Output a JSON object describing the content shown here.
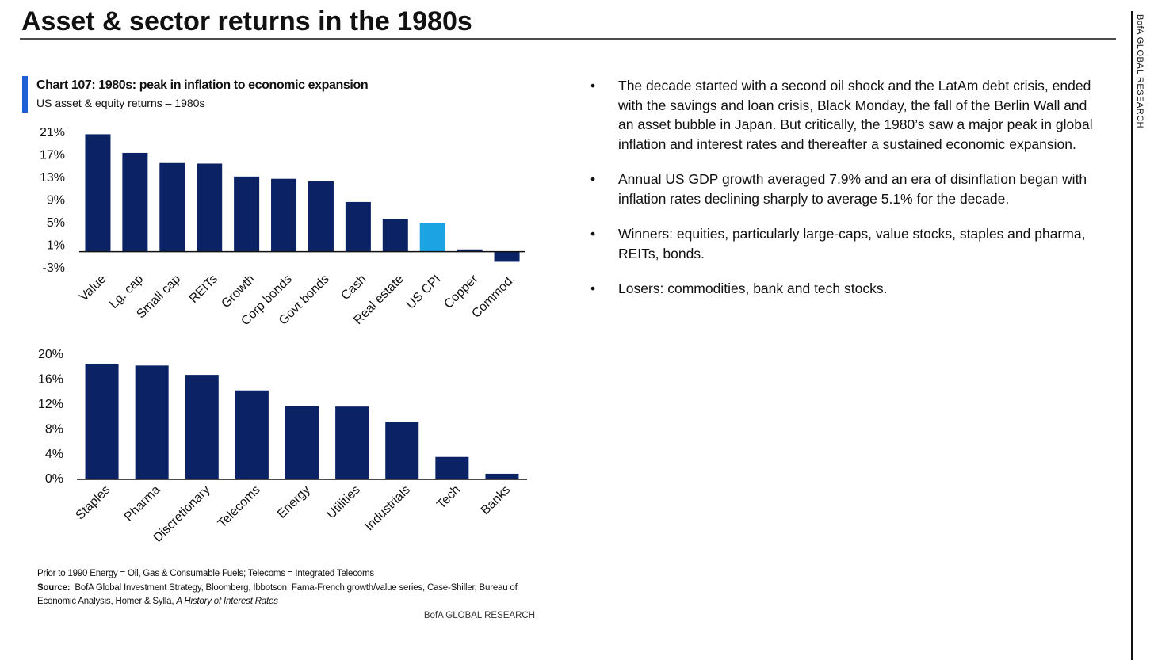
{
  "header": {
    "title": "Asset & sector returns in the 1980s",
    "side_label": "BofA GLOBAL RESEARCH"
  },
  "chart_data": [
    {
      "type": "bar",
      "title": "Chart 107: 1980s: peak in inflation to economic expansion",
      "subtitle": "US asset & equity returns – 1980s",
      "categories": [
        "Value",
        "Lg. cap",
        "Small cap",
        "REITs",
        "Growth",
        "Corp bonds",
        "Govt bonds",
        "Cash",
        "Real estate",
        "US CPI",
        "Copper",
        "Commod."
      ],
      "values": [
        20.8,
        17.5,
        15.7,
        15.6,
        13.3,
        12.9,
        12.5,
        8.8,
        5.8,
        5.1,
        0.4,
        -1.8
      ],
      "colors": [
        "#0b2265",
        "#0b2265",
        "#0b2265",
        "#0b2265",
        "#0b2265",
        "#0b2265",
        "#0b2265",
        "#0b2265",
        "#0b2265",
        "#1ca3e3",
        "#0b2265",
        "#0b2265"
      ],
      "ylim": [
        -3,
        21
      ],
      "yticks": [
        {
          "value": 21,
          "label": "21%"
        },
        {
          "value": 17,
          "label": "17%"
        },
        {
          "value": 13,
          "label": "13%"
        },
        {
          "value": 9,
          "label": "9%"
        },
        {
          "value": 5,
          "label": "5%"
        },
        {
          "value": 1,
          "label": "1%"
        },
        {
          "value": -3,
          "label": "-3%"
        }
      ],
      "grid": false
    },
    {
      "type": "bar",
      "categories": [
        "Staples",
        "Pharma",
        "Discretionary",
        "Telecoms",
        "Energy",
        "Utilities",
        "Industrials",
        "Tech",
        "Banks"
      ],
      "values": [
        18.6,
        18.3,
        16.8,
        14.3,
        11.8,
        11.7,
        9.3,
        3.6,
        0.9
      ],
      "color": "#0b2265",
      "ylim": [
        0,
        20
      ],
      "yticks": [
        {
          "value": 20,
          "label": "20%"
        },
        {
          "value": 16,
          "label": "16%"
        },
        {
          "value": 12,
          "label": "12%"
        },
        {
          "value": 8,
          "label": "8%"
        },
        {
          "value": 4,
          "label": "4%"
        },
        {
          "value": 0,
          "label": "0%"
        }
      ],
      "grid": false
    }
  ],
  "notes": {
    "note": "Prior to 1990  Energy = Oil, Gas & Consumable Fuels;  Telecoms = Integrated Telecoms",
    "source_label": "Source:",
    "source_text": "BofA  Global Investment Strategy, Bloomberg, Ibbotson,  Fama-French growth/value series, Case-Shiller,  Bureau of Economic  Analysis, Homer & Sylla,",
    "source_italic": "A History  of Interest Rates",
    "footer": "BofA GLOBAL RESEARCH"
  },
  "bullets": [
    "The decade started with a second oil shock and the LatAm debt crisis, ended with the savings and loan crisis, Black Monday, the fall of the Berlin Wall and an asset bubble in Japan. But critically, the 1980’s saw a major peak in global inflation and interest rates and thereafter a sustained economic expansion.",
    "Annual US GDP growth averaged 7.9% and an era of disinflation began with inflation rates declining sharply to average 5.1% for the decade.",
    "Winners: equities, particularly large-caps, value stocks, staples and pharma, REITs, bonds.",
    "Losers: commodities, bank and tech stocks."
  ]
}
